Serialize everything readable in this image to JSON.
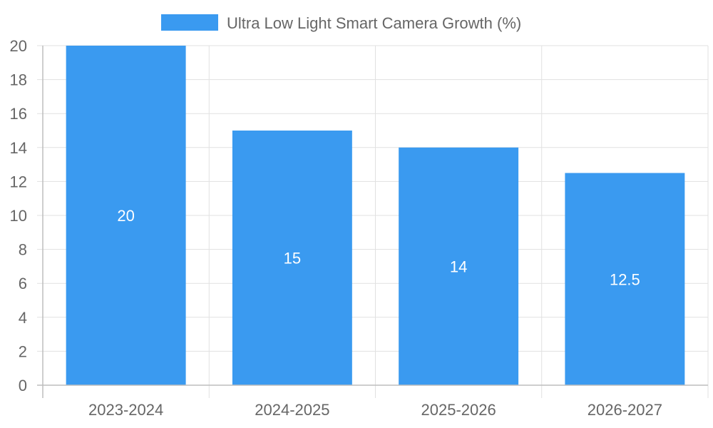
{
  "chart_data": {
    "type": "bar",
    "categories": [
      "2023-2024",
      "2024-2025",
      "2025-2026",
      "2026-2027"
    ],
    "series": [
      {
        "name": "Ultra Low Light Smart Camera Growth (%)",
        "values": [
          20,
          15,
          14,
          12.5
        ],
        "color": "#3a9af0"
      }
    ],
    "data_labels": [
      "20",
      "15",
      "14",
      "12.5"
    ],
    "ylim": [
      0,
      20
    ],
    "y_ticks": [
      0,
      2,
      4,
      6,
      8,
      10,
      12,
      14,
      16,
      18,
      20
    ],
    "y_tick_labels": [
      "0",
      "2",
      "4",
      "6",
      "8",
      "10",
      "12",
      "14",
      "16",
      "18",
      "20"
    ],
    "grid": true,
    "legend_position": "top-center",
    "title": "",
    "xlabel": "",
    "ylabel": ""
  }
}
